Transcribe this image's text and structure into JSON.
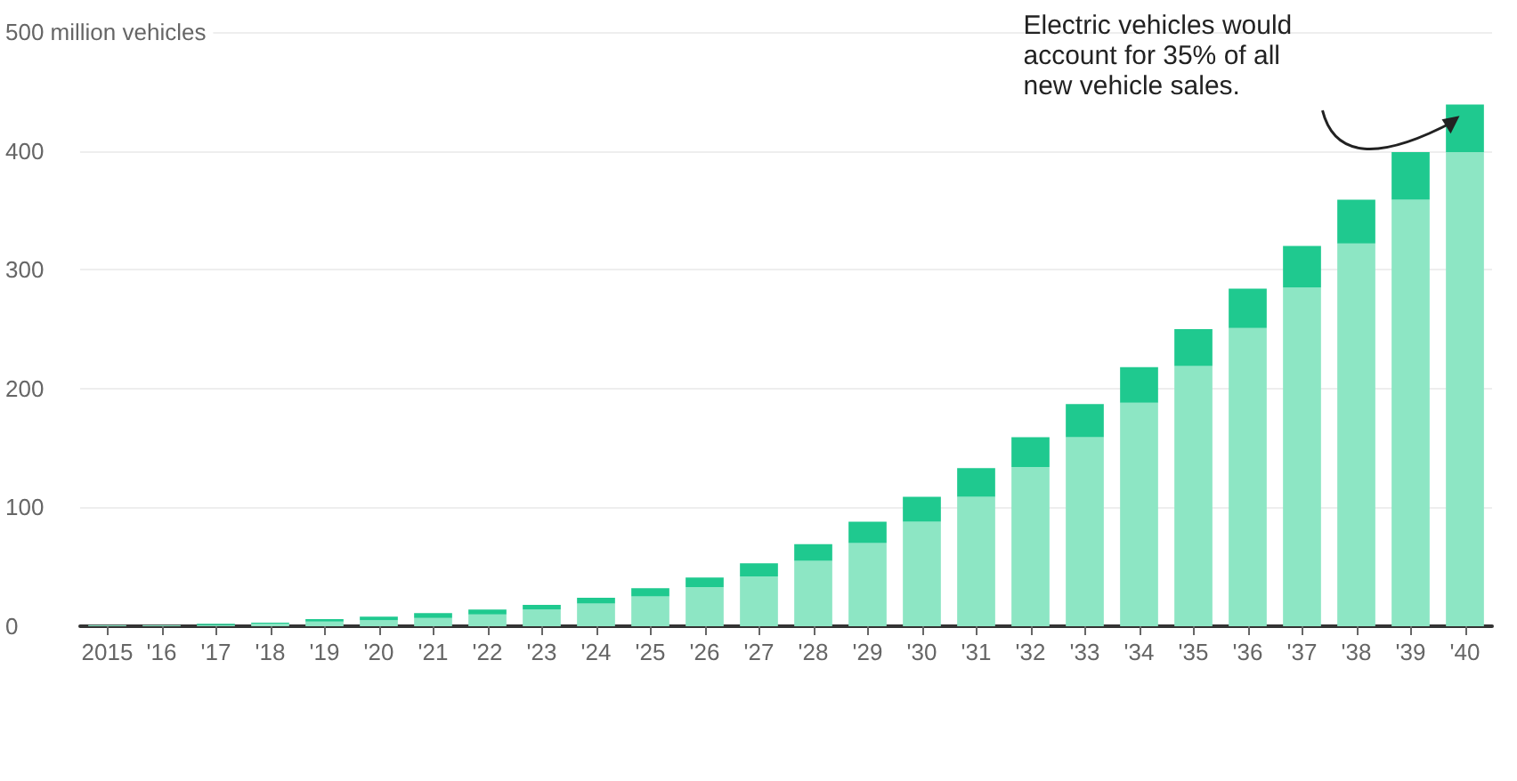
{
  "chart_data": {
    "type": "bar",
    "stacked": true,
    "categories": [
      "2015",
      "'16",
      "'17",
      "'18",
      "'19",
      "'20",
      "'21",
      "'22",
      "'23",
      "'24",
      "'25",
      "'26",
      "'27",
      "'28",
      "'29",
      "'30",
      "'31",
      "'32",
      "'33",
      "'34",
      "'35",
      "'36",
      "'37",
      "'38",
      "'39",
      "'40"
    ],
    "series": [
      {
        "color": "#8de6c4",
        "values": [
          1,
          1,
          1,
          2,
          4,
          5,
          7,
          10,
          14,
          19,
          25,
          33,
          42,
          55,
          70,
          88,
          109,
          134,
          159,
          188,
          219,
          251,
          285,
          322,
          359,
          399
        ]
      },
      {
        "color": "#1fc98f",
        "values": [
          0,
          0,
          1,
          1,
          2,
          3,
          4,
          4,
          4,
          5,
          7,
          8,
          11,
          14,
          18,
          21,
          24,
          25,
          28,
          30,
          31,
          33,
          35,
          37,
          40,
          40
        ]
      }
    ],
    "ylim": [
      0,
      500
    ],
    "yticks": [
      0,
      100,
      200,
      300,
      400,
      {
        "value": 500,
        "label": "500 million vehicles"
      }
    ],
    "grid": "y",
    "annotations": [
      "Electric vehicles would account for 35% of all new vehicle sales."
    ]
  }
}
